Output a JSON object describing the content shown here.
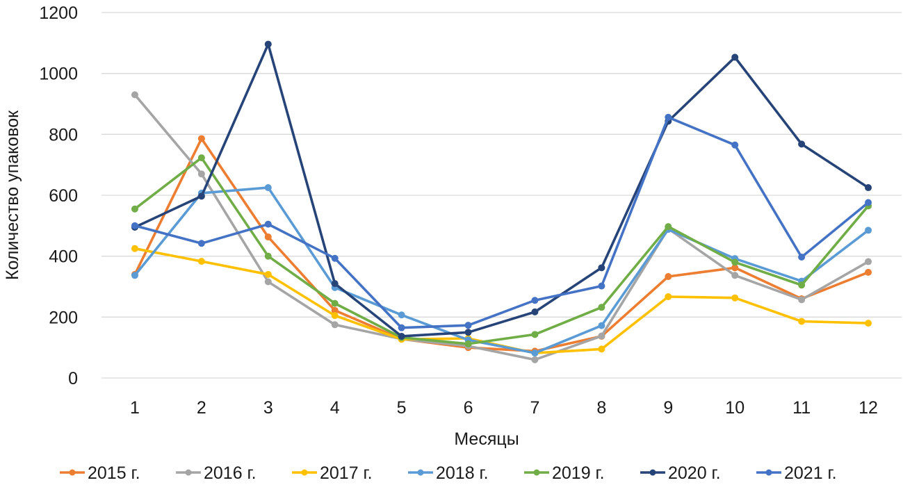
{
  "chart_data": {
    "type": "line",
    "title": "",
    "xlabel": "Месяцы",
    "ylabel": "Количество упаковок",
    "categories": [
      "1",
      "2",
      "3",
      "4",
      "5",
      "6",
      "7",
      "8",
      "9",
      "10",
      "11",
      "12"
    ],
    "ylim": [
      0,
      1200
    ],
    "yticks": [
      "0",
      "200",
      "400",
      "600",
      "800",
      "1000",
      "1200"
    ],
    "ytick_values": [
      0,
      200,
      400,
      600,
      800,
      1000,
      1200
    ],
    "grid": true,
    "legend_position": "bottom",
    "series": [
      {
        "name": "2015 г.",
        "color": "#ED7D31",
        "values": [
          340,
          786,
          463,
          222,
          128,
          100,
          88,
          137,
          333,
          362,
          260,
          347
        ]
      },
      {
        "name": "2016 г.",
        "color": "#A5A5A5",
        "values": [
          930,
          670,
          316,
          175,
          128,
          105,
          60,
          138,
          490,
          337,
          257,
          382
        ]
      },
      {
        "name": "2017 г.",
        "color": "#FFC000",
        "values": [
          425,
          383,
          340,
          205,
          127,
          130,
          82,
          95,
          267,
          263,
          186,
          180
        ]
      },
      {
        "name": "2018 г.",
        "color": "#5B9BD5",
        "values": [
          337,
          607,
          625,
          297,
          207,
          125,
          82,
          172,
          488,
          392,
          318,
          485
        ]
      },
      {
        "name": "2019 г.",
        "color": "#70AD47",
        "values": [
          555,
          723,
          400,
          245,
          133,
          112,
          143,
          232,
          497,
          380,
          305,
          565
        ]
      },
      {
        "name": "2020 г.",
        "color": "#264478",
        "values": [
          495,
          597,
          1096,
          310,
          137,
          150,
          217,
          362,
          843,
          1053,
          768,
          625
        ]
      },
      {
        "name": "2021 г.",
        "color": "#4472C4",
        "values": [
          500,
          442,
          505,
          393,
          165,
          173,
          255,
          302,
          856,
          765,
          397,
          576
        ]
      }
    ]
  }
}
